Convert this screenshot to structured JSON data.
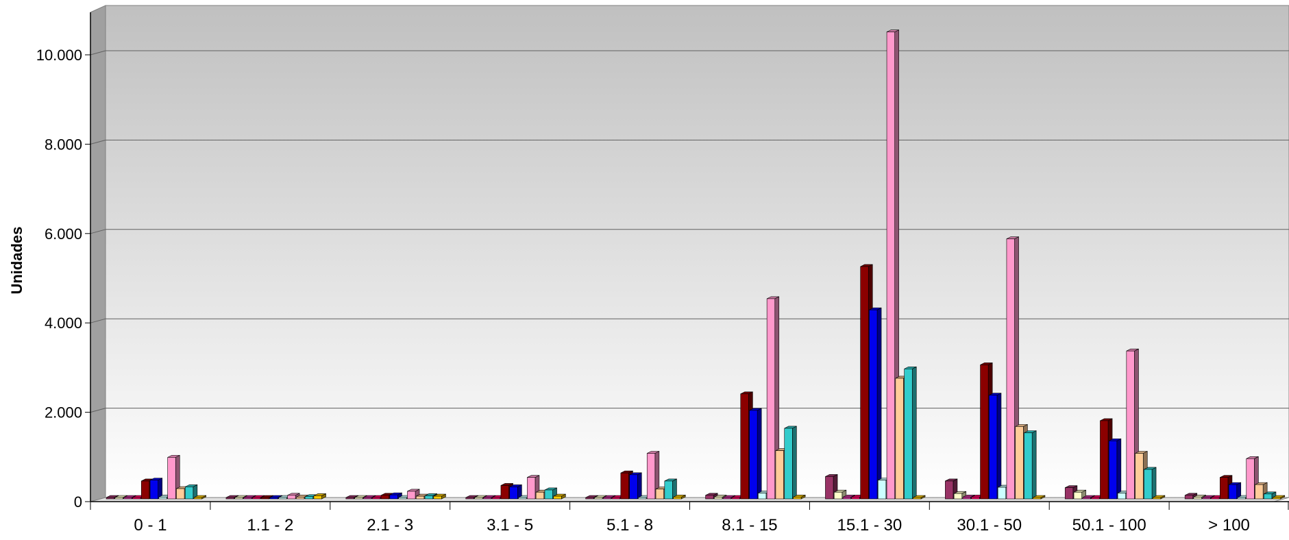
{
  "chart_data": {
    "type": "bar",
    "title": "",
    "xlabel": "",
    "ylabel": "Unidades",
    "ylim": [
      0,
      11000
    ],
    "y_ticks": [
      0,
      2000,
      4000,
      6000,
      8000,
      10000
    ],
    "y_tick_labels": [
      "0",
      "2.000",
      "4.000",
      "6.000",
      "8.000",
      "10.000"
    ],
    "grid": true,
    "legend": "none",
    "categories": [
      "0 - 1",
      "1.1 - 2",
      "2.1 - 3",
      "3.1 - 5",
      "5.1 - 8",
      "8.1 - 15",
      "15.1 - 30",
      "30.1 - 50",
      "50.1 - 100",
      "> 100"
    ],
    "series": [
      {
        "color": "#993366",
        "values": [
          20,
          5,
          5,
          15,
          15,
          80,
          500,
          400,
          250,
          80
        ]
      },
      {
        "color": "#ffffcc",
        "values": [
          15,
          5,
          5,
          10,
          10,
          40,
          150,
          120,
          150,
          40
        ]
      },
      {
        "color": "#cc3399",
        "values": [
          10,
          5,
          5,
          10,
          10,
          20,
          40,
          40,
          20,
          20
        ]
      },
      {
        "color": "#ff0066",
        "values": [
          10,
          5,
          5,
          10,
          10,
          20,
          40,
          40,
          20,
          20
        ]
      },
      {
        "color": "#8b0000",
        "values": [
          400,
          20,
          80,
          300,
          580,
          2350,
          5200,
          3000,
          1750,
          480
        ]
      },
      {
        "color": "#0000ee",
        "values": [
          420,
          30,
          90,
          270,
          540,
          1980,
          4230,
          2320,
          1300,
          320
        ]
      },
      {
        "color": "#ccffff",
        "values": [
          40,
          10,
          10,
          20,
          30,
          130,
          420,
          260,
          130,
          30
        ]
      },
      {
        "color": "#ff99cc",
        "values": [
          930,
          80,
          170,
          480,
          1020,
          4480,
          10450,
          5820,
          3310,
          900
        ]
      },
      {
        "color": "#ffcc99",
        "values": [
          230,
          40,
          60,
          150,
          220,
          1080,
          2700,
          1620,
          1020,
          320
        ]
      },
      {
        "color": "#33cccc",
        "values": [
          270,
          50,
          70,
          200,
          400,
          1580,
          2910,
          1480,
          660,
          110
        ]
      },
      {
        "color": "#ffcc00",
        "values": [
          20,
          70,
          60,
          60,
          40,
          40,
          20,
          10,
          10,
          10
        ]
      }
    ]
  }
}
